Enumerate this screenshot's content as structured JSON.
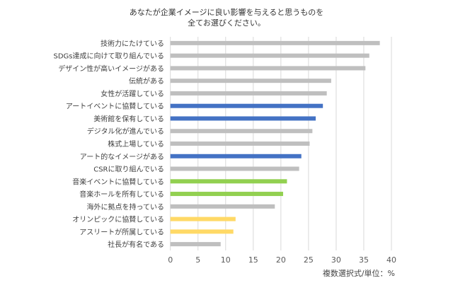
{
  "chart_data": {
    "type": "bar",
    "orientation": "horizontal",
    "title_lines": [
      "あなたが企業イメージに良い影響を与えると思うものを",
      "全てお選びください。"
    ],
    "categories": [
      "技術力にたけている",
      "SDGs達成に向けて取り組んでいる",
      "デザイン性が高いイメージがある",
      "伝統がある",
      "女性が活躍している",
      "アートイベントに協賛している",
      "美術館を保有している",
      "デジタル化が進んでいる",
      "株式上場している",
      "アート的なイメージがある",
      "CSRに取り組んでいる",
      "音楽イベントに協賛している",
      "音楽ホールを所有している",
      "海外に拠点を持っている",
      "オリンピックに協賛している",
      "アスリートが所属している",
      "社長が有名である"
    ],
    "values": [
      37.9,
      36.0,
      35.3,
      29.1,
      28.3,
      27.6,
      26.3,
      25.7,
      25.2,
      23.7,
      23.3,
      21.1,
      20.4,
      18.9,
      11.8,
      11.4,
      9.1
    ],
    "colors": [
      "#bfbfbf",
      "#bfbfbf",
      "#bfbfbf",
      "#bfbfbf",
      "#bfbfbf",
      "#4472c4",
      "#4472c4",
      "#bfbfbf",
      "#bfbfbf",
      "#4472c4",
      "#bfbfbf",
      "#92d050",
      "#92d050",
      "#bfbfbf",
      "#ffd966",
      "#ffd966",
      "#bfbfbf"
    ],
    "xlim": [
      0,
      40
    ],
    "xticks": [
      0,
      5,
      10,
      15,
      20,
      25,
      30,
      35,
      40
    ],
    "grid": true,
    "unit_note": "複数選択式/単位：%"
  }
}
